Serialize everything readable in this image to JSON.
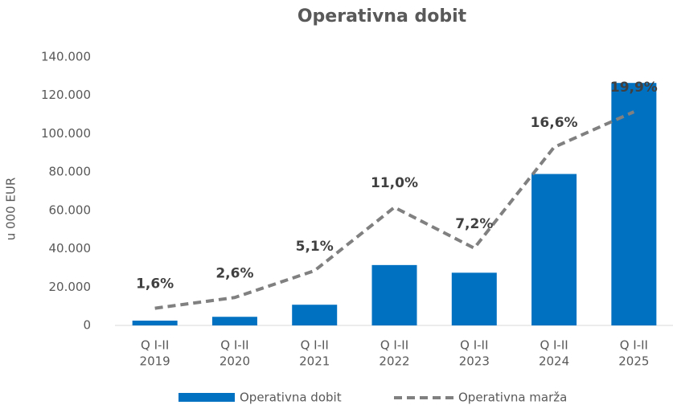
{
  "chart_data": {
    "type": "bar_line",
    "title": "Operativna dobit",
    "y_axis_label": "u 000 EUR",
    "categories": [
      [
        "Q I-II",
        "2019"
      ],
      [
        "Q I-II",
        "2020"
      ],
      [
        "Q I-II",
        "2021"
      ],
      [
        "Q I-II",
        "2022"
      ],
      [
        "Q I-II",
        "2023"
      ],
      [
        "Q I-II",
        "2024"
      ],
      [
        "Q I-II",
        "2025"
      ]
    ],
    "series": [
      {
        "name": "Operativna dobit",
        "type": "bar",
        "color": "#0070c0",
        "values": [
          2500,
          4500,
          10800,
          31500,
          27500,
          79000,
          126500
        ]
      },
      {
        "name": "Operativna marža",
        "type": "line",
        "axis": "y2",
        "color": "#808080",
        "dashed": true,
        "values": [
          1.6,
          2.6,
          5.1,
          11.0,
          7.2,
          16.6,
          19.9
        ],
        "value_labels": [
          "1,6%",
          "2,6%",
          "5,1%",
          "11,0%",
          "7,2%",
          "16,6%",
          "19,9%"
        ]
      }
    ],
    "ylim": [
      0,
      140000
    ],
    "yticks": [
      0,
      {
        "value": 20000,
        "label": "20.000"
      },
      {
        "value": 40000,
        "label": "40.000"
      },
      {
        "value": 60000,
        "label": "60.000"
      },
      {
        "value": 80000,
        "label": "80.000"
      },
      {
        "value": 100000,
        "label": "100.000"
      },
      {
        "value": 120000,
        "label": "120.000"
      },
      {
        "value": 140000,
        "label": "140.000"
      }
    ],
    "y2lim": [
      0,
      25
    ],
    "grid": false,
    "legend": "bottom"
  }
}
